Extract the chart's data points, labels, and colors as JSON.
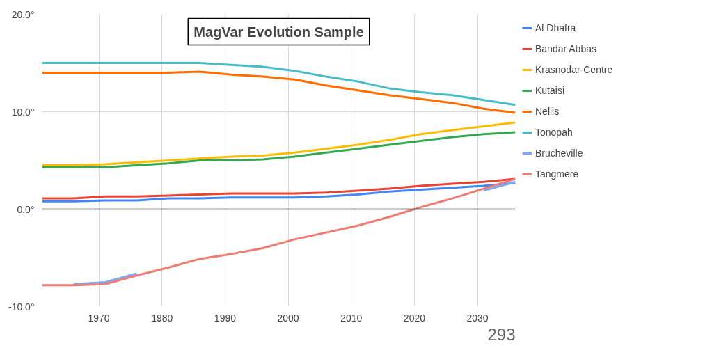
{
  "chart_data": {
    "type": "line",
    "title": "MagVar Evolution Sample",
    "annotations": [
      "293"
    ],
    "x": [
      1961,
      1966,
      1971,
      1976,
      1981,
      1986,
      1991,
      1996,
      2001,
      2006,
      2011,
      2016,
      2021,
      2026,
      2031,
      2036
    ],
    "xlim": [
      1961,
      2036
    ],
    "xticks": [
      1970,
      1980,
      1990,
      2000,
      2010,
      2020,
      2030
    ],
    "ylim": [
      -10,
      20
    ],
    "yticks": [
      {
        "value": -10,
        "label": "-10.0°"
      },
      {
        "value": 0,
        "label": "0.0°"
      },
      {
        "value": 10,
        "label": "10.0°"
      },
      {
        "value": 20,
        "label": "20.0°"
      }
    ],
    "grid": true,
    "legend": "right",
    "line_style": "solid",
    "ref_lines": [
      {
        "axis": "y",
        "value": 0,
        "color": "#333333"
      }
    ],
    "series": [
      {
        "name": "Al Dhafra",
        "color": "#4285f4",
        "values": [
          0.8,
          0.8,
          0.9,
          0.9,
          1.1,
          1.1,
          1.2,
          1.2,
          1.2,
          1.3,
          1.5,
          1.8,
          2.0,
          2.2,
          2.4,
          2.7
        ]
      },
      {
        "name": "Bandar Abbas",
        "color": "#ea4335",
        "values": [
          1.1,
          1.1,
          1.3,
          1.3,
          1.4,
          1.5,
          1.6,
          1.6,
          1.6,
          1.7,
          1.9,
          2.1,
          2.4,
          2.6,
          2.8,
          3.1
        ]
      },
      {
        "name": "Krasnodar-Centre",
        "color": "#fbbc04",
        "values": [
          4.5,
          4.5,
          4.6,
          4.8,
          5.0,
          5.2,
          5.4,
          5.5,
          5.8,
          6.2,
          6.6,
          7.1,
          7.7,
          8.1,
          8.5,
          8.9
        ]
      },
      {
        "name": "Kutaisi",
        "color": "#34a853",
        "values": [
          4.3,
          4.3,
          4.3,
          4.5,
          4.7,
          5.0,
          5.0,
          5.1,
          5.4,
          5.8,
          6.2,
          6.6,
          7.0,
          7.4,
          7.7,
          7.9
        ]
      },
      {
        "name": "Nellis",
        "color": "#ff6d01",
        "values": [
          14.0,
          14.0,
          14.0,
          14.0,
          14.0,
          14.1,
          13.8,
          13.6,
          13.3,
          12.7,
          12.2,
          11.7,
          11.3,
          10.9,
          10.3,
          9.9
        ]
      },
      {
        "name": "Tonopah",
        "color": "#46bdc6",
        "values": [
          15.0,
          15.0,
          15.0,
          15.0,
          15.0,
          15.0,
          14.8,
          14.6,
          14.2,
          13.6,
          13.1,
          12.4,
          12.0,
          11.7,
          11.2,
          10.7
        ]
      },
      {
        "name": "Brucheville",
        "color": "#7baaf7",
        "values": [
          null,
          -7.7,
          -7.5,
          -6.6,
          null,
          null,
          null,
          null,
          null,
          null,
          null,
          null,
          null,
          null,
          1.9,
          2.8
        ]
      },
      {
        "name": "Tangmere",
        "color": "#f07b72",
        "values": [
          -7.8,
          -7.8,
          -7.7,
          -6.8,
          -6.0,
          -5.1,
          -4.6,
          -4.0,
          -3.1,
          -2.4,
          -1.7,
          -0.8,
          0.2,
          1.1,
          2.1,
          3.1
        ]
      }
    ]
  }
}
